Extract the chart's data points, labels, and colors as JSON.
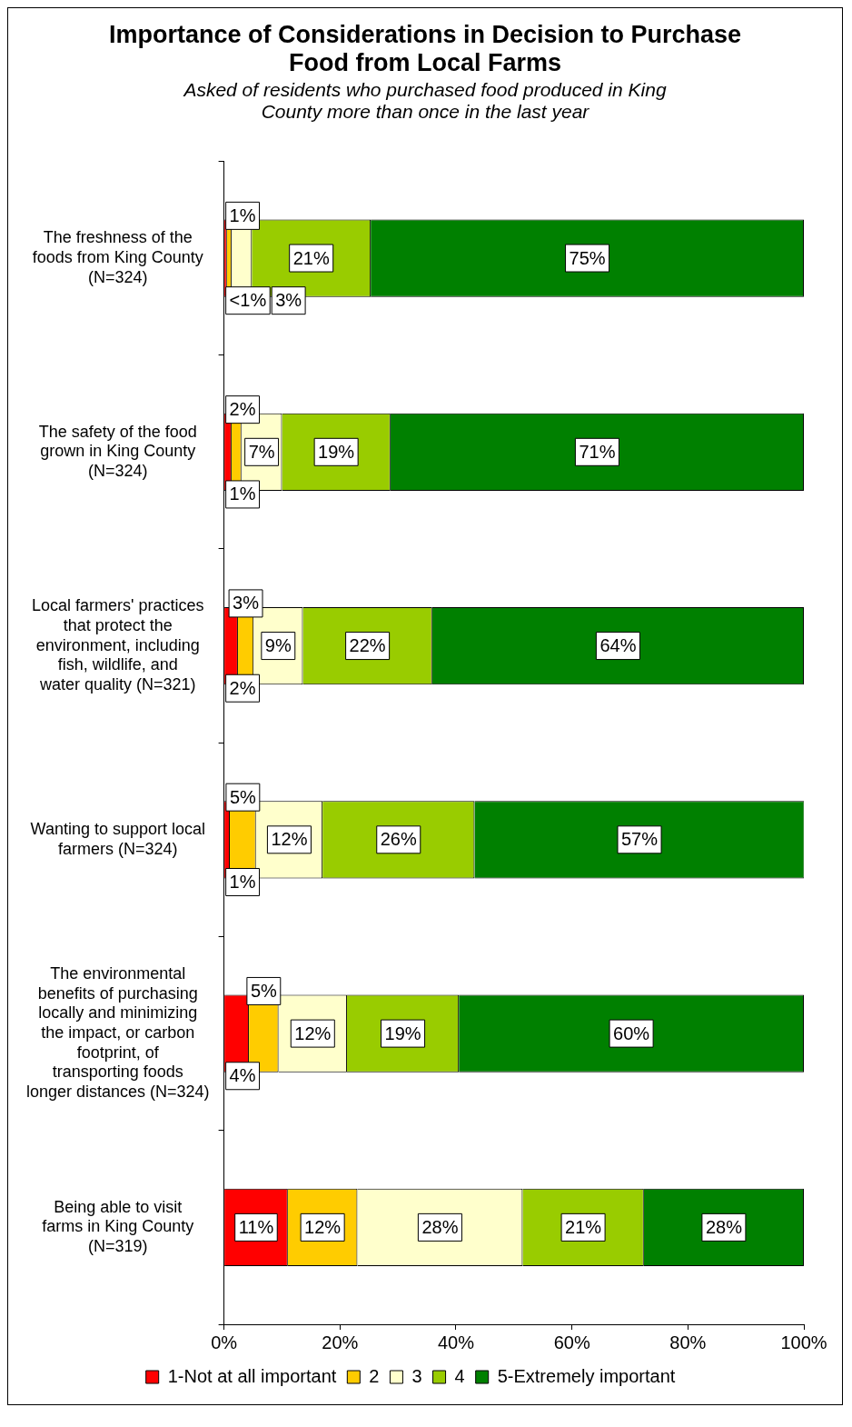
{
  "chart_data": {
    "type": "bar",
    "orientation": "horizontal",
    "stacked": true,
    "title": "Importance of Considerations in Decision to Purchase Food from Local Farms",
    "subtitle": "Asked of residents who purchased food produced in King County more than once in the last year",
    "categories": [
      "The freshness of the foods from King County (N=324)",
      "The safety of the food grown in King County (N=324)",
      "Local farmers' practices that protect the environment, including fish, wildlife, and water quality (N=321)",
      "Wanting to support local farmers (N=324)",
      "The environmental benefits of purchasing locally and minimizing the impact, or carbon footprint, of transporting foods longer distances (N=324)",
      "Being able to visit farms in King County (N=319)"
    ],
    "series": [
      {
        "name": "1-Not at all important",
        "color": "#ff0000",
        "values": [
          0.5,
          1.3,
          2.4,
          1,
          4.3,
          11
        ],
        "value_labels": [
          "<1%",
          "1%",
          "2%",
          "1%",
          "4%",
          "11%"
        ]
      },
      {
        "name": "2",
        "color": "#ffcc00",
        "values": [
          0.8,
          1.7,
          2.7,
          4.5,
          5.1,
          12
        ],
        "value_labels": [
          "1%",
          "2%",
          "3%",
          "5%",
          "5%",
          "12%"
        ]
      },
      {
        "name": "3",
        "color": "#ffffcc",
        "values": [
          3.5,
          7,
          8.5,
          11.5,
          11.8,
          28.5
        ],
        "value_labels": [
          "3%",
          "7%",
          "9%",
          "12%",
          "12%",
          "28%"
        ]
      },
      {
        "name": "4",
        "color": "#99cc00",
        "values": [
          20.5,
          18.7,
          22.3,
          26.2,
          19.3,
          20.9
        ],
        "value_labels": [
          "21%",
          "19%",
          "22%",
          "26%",
          "19%",
          "21%"
        ]
      },
      {
        "name": "5-Extremely important",
        "color": "#008000",
        "values": [
          74.7,
          71.3,
          64.1,
          56.9,
          59.5,
          27.6
        ],
        "value_labels": [
          "75%",
          "71%",
          "64%",
          "57%",
          "60%",
          "28%"
        ]
      }
    ],
    "xlim": [
      0,
      100
    ],
    "xticks": [
      {
        "value": 0,
        "label": "0%"
      },
      {
        "value": 20,
        "label": "20%"
      },
      {
        "value": 40,
        "label": "40%"
      },
      {
        "value": 60,
        "label": "60%"
      },
      {
        "value": 80,
        "label": "80%"
      },
      {
        "value": 100,
        "label": "100%"
      }
    ],
    "grid": false,
    "legend": "bottom"
  }
}
